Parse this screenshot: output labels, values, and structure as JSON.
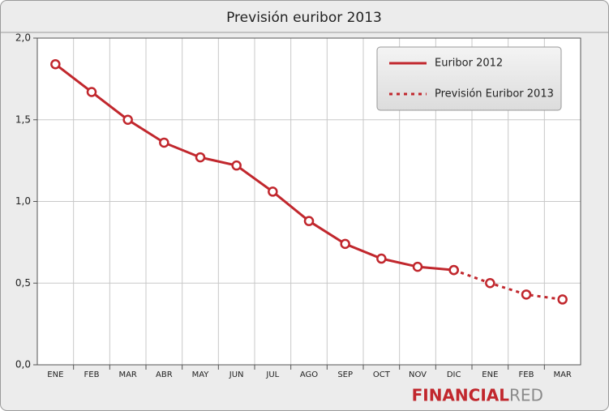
{
  "chart_data": {
    "type": "line",
    "title": "Previsión euribor 2013",
    "categories": [
      "ENE",
      "FEB",
      "MAR",
      "ABR",
      "MAY",
      "JUN",
      "JUL",
      "AGO",
      "SEP",
      "OCT",
      "NOV",
      "DIC",
      "ENE",
      "FEB",
      "MAR"
    ],
    "series": [
      {
        "name": "Euribor 2012",
        "color": "#c1272d",
        "dashed": false,
        "values": [
          1.84,
          1.67,
          1.5,
          1.36,
          1.27,
          1.22,
          1.06,
          0.88,
          0.74,
          0.65,
          0.6,
          0.58,
          null,
          null,
          null
        ]
      },
      {
        "name": "Previsión Euribor 2013",
        "color": "#c1272d",
        "dashed": true,
        "values": [
          null,
          null,
          null,
          null,
          null,
          null,
          null,
          null,
          null,
          null,
          null,
          0.58,
          0.5,
          0.43,
          0.4
        ]
      }
    ],
    "ylim": [
      0,
      2
    ],
    "yticks": [
      {
        "value": 0,
        "label": "0,0"
      },
      {
        "value": 0.5,
        "label": "0,5"
      },
      {
        "value": 1,
        "label": "1,0"
      },
      {
        "value": 1.5,
        "label": "1,5"
      },
      {
        "value": 2,
        "label": "2,0"
      }
    ],
    "grid": true,
    "legend": "top-right"
  },
  "brand": {
    "first": "FINANCIAL",
    "second": "RED"
  }
}
